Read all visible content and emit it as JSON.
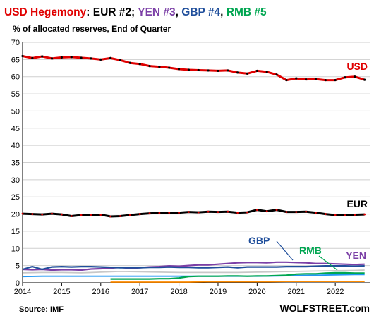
{
  "title": {
    "part_usd": "USD Hegemony",
    "part_colon": ": ",
    "part_eur": "EUR #2",
    "sep1": "; ",
    "part_yen": "YEN #3",
    "sep2": ", ",
    "part_gbp": "GBP #4",
    "sep3": ", ",
    "part_rmb": "RMB #5"
  },
  "subtitle": "% of allocated reserves, End of Quarter",
  "source": "Source: IMF",
  "watermark": "WOLFSTREET.com",
  "colors": {
    "usd": "#e00000",
    "eur": "#000000",
    "yen": "#7b3fa6",
    "gbp": "#1f4e9b",
    "rmb": "#00a651",
    "title_black": "#000000",
    "grid": "#cfcfcf"
  },
  "chart_data": {
    "type": "line",
    "ylim": [
      0,
      70
    ],
    "yticks": [
      "0",
      "5",
      "10",
      "15",
      "20",
      "25",
      "30",
      "35",
      "40",
      "45",
      "50",
      "55",
      "60",
      "65",
      "70"
    ],
    "xlim": [
      2014,
      2022.9
    ],
    "xticks": [
      "2014",
      "2015",
      "2016",
      "2017",
      "2018",
      "2019",
      "2020",
      "2021",
      "2022"
    ],
    "grid": "horizontal",
    "series": [
      {
        "name": "USD",
        "color": "#e00000",
        "x": [
          2014.0,
          2014.25,
          2014.5,
          2014.75,
          2015.0,
          2015.25,
          2015.5,
          2015.75,
          2016.0,
          2016.25,
          2016.5,
          2016.75,
          2017.0,
          2017.25,
          2017.5,
          2017.75,
          2018.0,
          2018.25,
          2018.5,
          2018.75,
          2019.0,
          2019.25,
          2019.5,
          2019.75,
          2020.0,
          2020.25,
          2020.5,
          2020.75,
          2021.0,
          2021.25,
          2021.5,
          2021.75,
          2022.0,
          2022.25,
          2022.5,
          2022.75
        ],
        "y": [
          66.0,
          65.4,
          65.9,
          65.3,
          65.6,
          65.7,
          65.5,
          65.3,
          65.0,
          65.4,
          64.8,
          64.0,
          63.7,
          63.1,
          62.9,
          62.6,
          62.2,
          62.0,
          61.9,
          61.8,
          61.7,
          61.8,
          61.2,
          60.9,
          61.7,
          61.4,
          60.6,
          59.0,
          59.5,
          59.2,
          59.3,
          59.0,
          59.0,
          59.8,
          60.0,
          59.1
        ]
      },
      {
        "name": "EUR",
        "color": "#000000",
        "x": [
          2014.0,
          2014.25,
          2014.5,
          2014.75,
          2015.0,
          2015.25,
          2015.5,
          2015.75,
          2016.0,
          2016.25,
          2016.5,
          2016.75,
          2017.0,
          2017.25,
          2017.5,
          2017.75,
          2018.0,
          2018.25,
          2018.5,
          2018.75,
          2019.0,
          2019.25,
          2019.5,
          2019.75,
          2020.0,
          2020.25,
          2020.5,
          2020.75,
          2021.0,
          2021.25,
          2021.5,
          2021.75,
          2022.0,
          2022.25,
          2022.5,
          2022.75
        ],
        "y": [
          20.1,
          20.0,
          19.9,
          20.1,
          19.9,
          19.4,
          19.7,
          19.8,
          19.8,
          19.3,
          19.4,
          19.7,
          20.0,
          20.2,
          20.3,
          20.4,
          20.4,
          20.6,
          20.5,
          20.7,
          20.6,
          20.7,
          20.4,
          20.5,
          21.2,
          20.8,
          21.2,
          20.6,
          20.6,
          20.7,
          20.4,
          20.0,
          19.7,
          19.6,
          19.8,
          19.9
        ]
      },
      {
        "name": "YEN",
        "color": "#7b3fa6",
        "x": [
          2014.0,
          2014.25,
          2014.5,
          2014.75,
          2015.0,
          2015.25,
          2015.5,
          2015.75,
          2016.0,
          2016.25,
          2016.5,
          2016.75,
          2017.0,
          2017.25,
          2017.5,
          2017.75,
          2018.0,
          2018.25,
          2018.5,
          2018.75,
          2019.0,
          2019.25,
          2019.5,
          2019.75,
          2020.0,
          2020.25,
          2020.5,
          2020.75,
          2021.0,
          2021.25,
          2021.5,
          2021.75,
          2022.0,
          2022.25,
          2022.5,
          2022.75
        ],
        "y": [
          3.9,
          3.8,
          3.9,
          3.7,
          3.8,
          3.8,
          3.7,
          4.0,
          4.1,
          4.3,
          4.5,
          4.2,
          4.4,
          4.6,
          4.7,
          4.9,
          4.8,
          5.0,
          5.2,
          5.2,
          5.4,
          5.6,
          5.8,
          5.9,
          5.9,
          5.8,
          6.0,
          6.0,
          5.9,
          5.8,
          5.6,
          5.6,
          5.5,
          5.4,
          5.3,
          5.4
        ]
      },
      {
        "name": "GBP",
        "color": "#1f4e9b",
        "x": [
          2014.0,
          2014.25,
          2014.5,
          2014.75,
          2015.0,
          2015.25,
          2015.5,
          2015.75,
          2016.0,
          2016.25,
          2016.5,
          2016.75,
          2017.0,
          2017.25,
          2017.5,
          2017.75,
          2018.0,
          2018.25,
          2018.5,
          2018.75,
          2019.0,
          2019.25,
          2019.5,
          2019.75,
          2020.0,
          2020.25,
          2020.5,
          2020.75,
          2021.0,
          2021.25,
          2021.5,
          2021.75,
          2022.0,
          2022.25,
          2022.5,
          2022.75
        ],
        "y": [
          3.9,
          4.7,
          3.9,
          4.6,
          4.7,
          4.6,
          4.7,
          4.7,
          4.6,
          4.5,
          4.4,
          4.4,
          4.4,
          4.5,
          4.5,
          4.6,
          4.5,
          4.5,
          4.4,
          4.4,
          4.5,
          4.6,
          4.4,
          4.6,
          4.6,
          4.6,
          4.6,
          4.7,
          4.7,
          4.7,
          4.8,
          4.9,
          4.9,
          4.9,
          4.8,
          4.9
        ]
      },
      {
        "name": "RMB",
        "color": "#00a651",
        "x": [
          2016.25,
          2016.5,
          2016.75,
          2017.0,
          2017.25,
          2017.5,
          2017.75,
          2018.0,
          2018.25,
          2018.5,
          2018.75,
          2019.0,
          2019.25,
          2019.5,
          2019.75,
          2020.0,
          2020.25,
          2020.5,
          2020.75,
          2021.0,
          2021.25,
          2021.5,
          2021.75,
          2022.0,
          2022.25,
          2022.5,
          2022.75
        ],
        "y": [
          1.1,
          1.1,
          1.1,
          1.1,
          1.1,
          1.2,
          1.2,
          1.4,
          1.8,
          1.9,
          1.9,
          1.9,
          2.0,
          2.0,
          1.9,
          2.0,
          2.0,
          2.1,
          2.2,
          2.5,
          2.6,
          2.6,
          2.8,
          2.9,
          2.9,
          2.8,
          2.8
        ]
      },
      {
        "name": "",
        "color": "#c8c8c8",
        "x": [
          2014.0,
          2014.5,
          2015.0,
          2015.5,
          2016.0,
          2016.5,
          2017.0,
          2017.5,
          2018.0,
          2018.5,
          2019.0,
          2019.5,
          2020.0,
          2020.5,
          2021.0,
          2021.5,
          2022.0,
          2022.5,
          2022.75
        ],
        "y": [
          2.9,
          3.0,
          3.0,
          2.9,
          3.1,
          3.3,
          3.2,
          3.1,
          3.0,
          3.0,
          3.0,
          3.0,
          3.1,
          3.2,
          3.3,
          3.4,
          3.5,
          3.6,
          3.7
        ]
      },
      {
        "name": "",
        "color": "#2196f3",
        "x": [
          2014.0,
          2014.5,
          2015.0,
          2015.5,
          2016.0,
          2016.5,
          2017.0,
          2017.5,
          2018.0,
          2018.5,
          2019.0,
          2019.5,
          2020.0,
          2020.5,
          2021.0,
          2021.5,
          2022.0,
          2022.5,
          2022.75
        ],
        "y": [
          1.8,
          1.9,
          1.9,
          1.9,
          1.9,
          1.9,
          1.9,
          1.9,
          1.9,
          1.9,
          1.9,
          1.9,
          1.9,
          2.0,
          2.1,
          2.2,
          2.3,
          2.4,
          2.4
        ]
      },
      {
        "name": "",
        "color": "#ff8c00",
        "x": [
          2016.25,
          2016.75,
          2017.25,
          2017.75,
          2018.25,
          2018.75,
          2019.25,
          2019.75,
          2020.25,
          2020.75,
          2021.25,
          2021.75,
          2022.25,
          2022.75
        ],
        "y": [
          0.2,
          0.2,
          0.2,
          0.2,
          0.2,
          0.3,
          0.3,
          0.3,
          0.3,
          0.4,
          0.4,
          0.4,
          0.4,
          0.4
        ]
      }
    ],
    "annotations": [
      {
        "text": "USD",
        "series": "USD"
      },
      {
        "text": "EUR",
        "series": "EUR"
      },
      {
        "text": "GBP",
        "series": "GBP"
      },
      {
        "text": "RMB",
        "series": "RMB"
      },
      {
        "text": "YEN",
        "series": "YEN"
      }
    ]
  }
}
